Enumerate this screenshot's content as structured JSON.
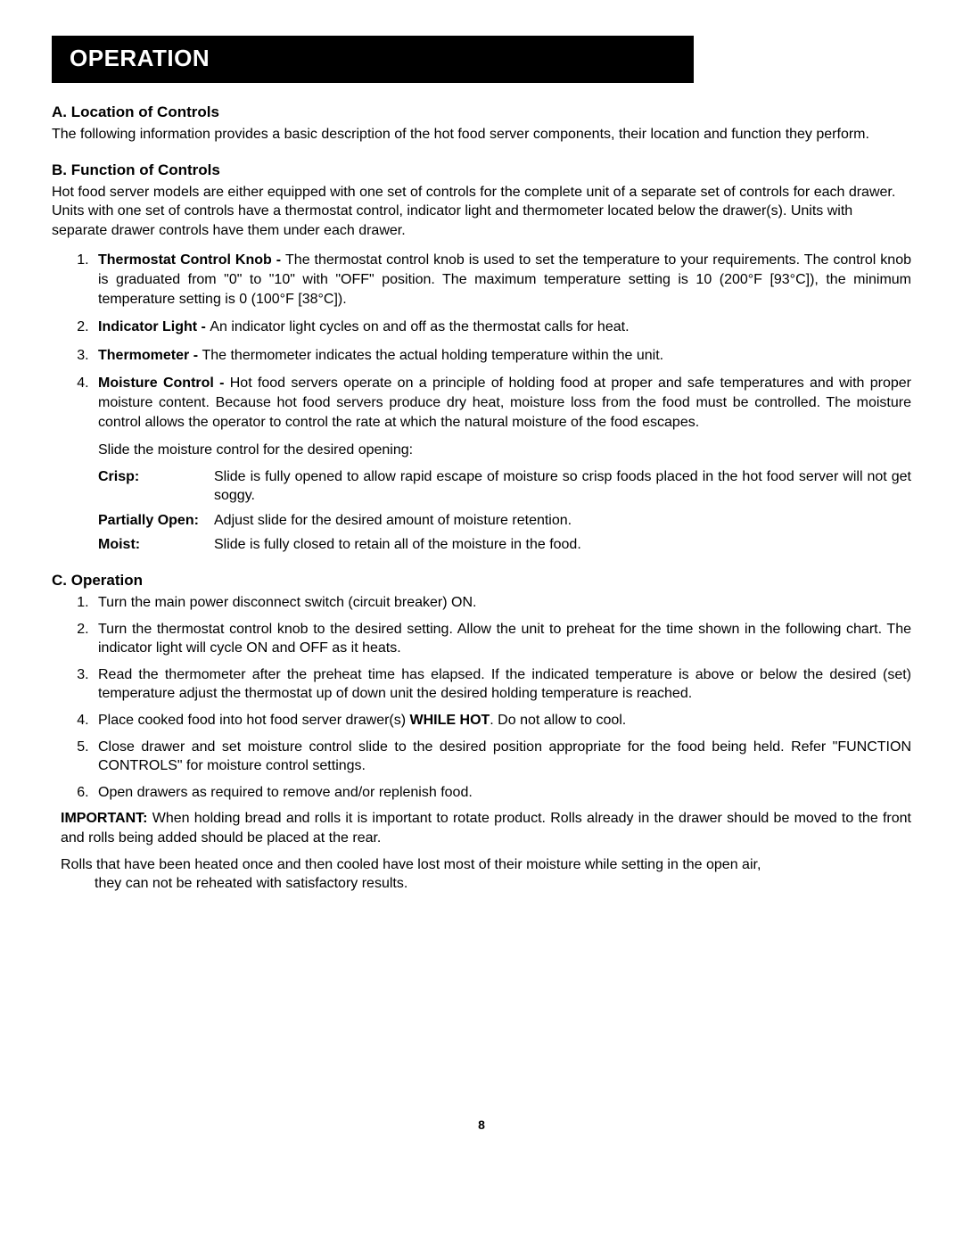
{
  "header": {
    "title": "OPERATION"
  },
  "sectionA": {
    "heading": "A. Location of Controls",
    "text": "The following information provides a basic description of the hot food server components, their location and function they perform."
  },
  "sectionB": {
    "heading": "B. Function of Controls",
    "intro": "Hot food server models are either equipped with one set of controls for the complete unit of a separate set of controls for each drawer.  Units with one set of controls have a thermostat control, indicator light and thermometer located below the drawer(s).  Units with separate drawer controls have them under each drawer.",
    "items": [
      {
        "label": "Thermostat Control Knob - ",
        "text": "The thermostat control knob is used to set the temperature to your requirements.  The control knob is graduated from \"0\" to \"10\" with \"OFF\" position.  The maximum temperature setting is 10 (200°F [93°C]), the minimum temperature setting is 0 (100°F [38°C])."
      },
      {
        "label": "Indicator Light - ",
        "text": "An indicator light cycles on and off as the thermostat calls for heat."
      },
      {
        "label": "Thermometer - ",
        "text": "The thermometer indicates the actual holding temperature within the unit."
      },
      {
        "label": "Moisture Control - ",
        "text": "Hot food servers operate on a principle of holding food at proper and safe temperatures and with proper moisture content.  Because hot food servers produce dry heat, moisture loss from the food must be controlled.  The moisture control allows the operator to control the rate at which the natural moisture of the food escapes."
      }
    ],
    "moisture_intro": "Slide the moisture control for the desired opening:",
    "settings": [
      {
        "label": "Crisp:",
        "text": "Slide is fully opened to allow rapid escape of moisture so crisp foods placed in the hot food server will not get soggy."
      },
      {
        "label": "Partially Open:",
        "text": "Adjust slide for the desired amount of moisture retention."
      },
      {
        "label": "Moist:",
        "text": "Slide is fully closed to retain all of the moisture in the food."
      }
    ]
  },
  "sectionC": {
    "heading": "C. Operation",
    "steps": [
      {
        "before": "Turn the main power disconnect switch (circuit breaker) ON.",
        "bold": "",
        "after": ""
      },
      {
        "before": "Turn the thermostat control knob to the desired setting.  Allow the unit to preheat for the time shown in the following chart.  The indicator light will cycle ON and OFF as it heats.",
        "bold": "",
        "after": ""
      },
      {
        "before": "Read the thermometer after the preheat time has elapsed.  If the indicated temperature is above or below the desired (set) temperature adjust the thermostat up of down unit the desired holding temperature is reached.",
        "bold": "",
        "after": ""
      },
      {
        "before": "Place cooked food into hot food server drawer(s) ",
        "bold": "WHILE HOT",
        "after": ".  Do not allow to cool."
      },
      {
        "before": "Close drawer and set moisture control slide to the desired position appropriate for the food being held.  Refer \"FUNCTION CONTROLS\" for moisture control settings.",
        "bold": "",
        "after": ""
      },
      {
        "before": "Open drawers as required to remove and/or replenish food.",
        "bold": "",
        "after": ""
      }
    ],
    "notes": {
      "important_label": "IMPORTANT:",
      "important_text": " When holding bread and rolls it is important to rotate product.  Rolls already in the drawer should be moved to the front and rolls being added should be placed at the rear.",
      "rolls_lead": "Rolls that have been heated once and then cooled have lost most of their moisture while setting in the open air,",
      "rolls_indent": "they can not be reheated with satisfactory results."
    }
  },
  "page_number": "8"
}
